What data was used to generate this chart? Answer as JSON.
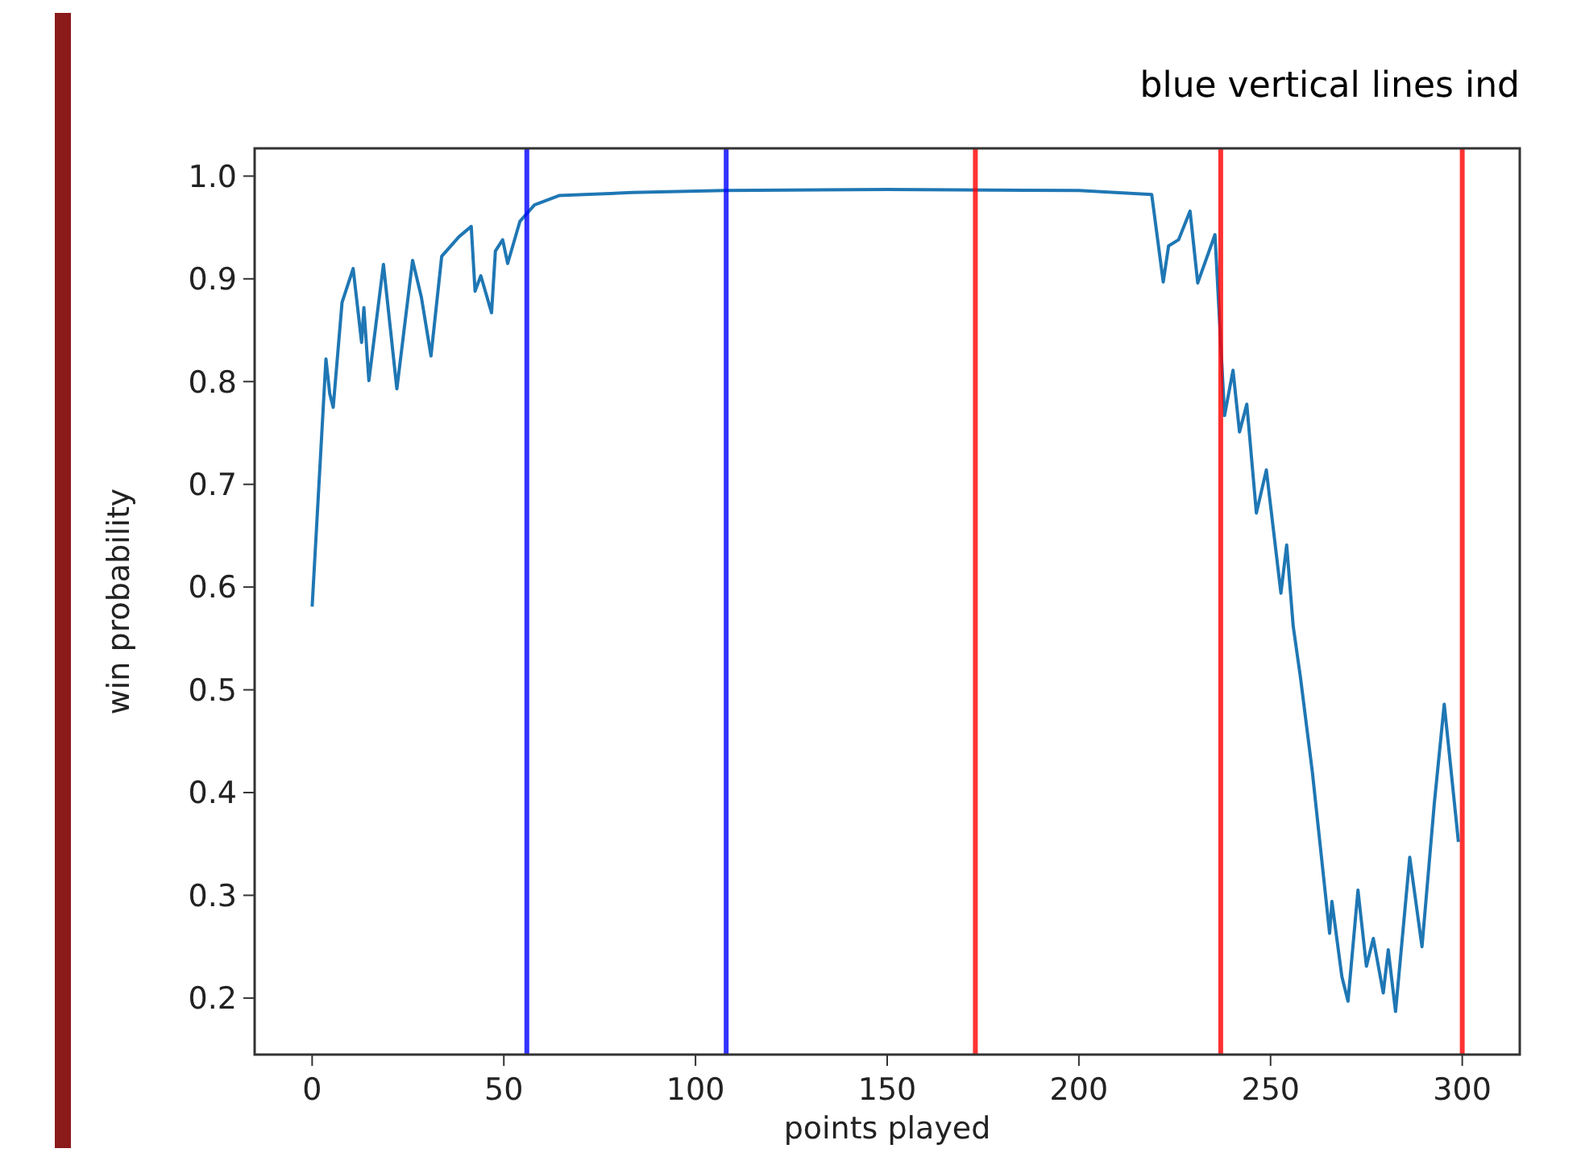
{
  "chart_data": {
    "type": "line",
    "title": "blue vertical lines ind",
    "xlabel": "points played",
    "ylabel": "win probability",
    "xlim": [
      -15,
      315
    ],
    "xticks": [
      0,
      50,
      100,
      150,
      200,
      250,
      300
    ],
    "ylim": [
      0.145,
      1.027
    ],
    "yticks": [
      {
        "value": 0.2,
        "label": "0.2"
      },
      {
        "value": 0.3,
        "label": "0.3"
      },
      {
        "value": 0.4,
        "label": "0.4"
      },
      {
        "value": 0.5,
        "label": "0.5"
      },
      {
        "value": 0.6,
        "label": "0.6"
      },
      {
        "value": 0.7,
        "label": "0.7"
      },
      {
        "value": 0.8,
        "label": "0.8"
      },
      {
        "value": 0.9,
        "label": "0.9"
      },
      {
        "value": 1.0,
        "label": "1.0"
      }
    ],
    "grid": false,
    "marker": "none",
    "line_style": "solid",
    "series": [
      {
        "color": "#1f77b4",
        "x": [
          0,
          3.6,
          4.6,
          5.5,
          7.8,
          10.7,
          12.9,
          13.5,
          14.8,
          18.6,
          22.1,
          26.2,
          28.5,
          31,
          33.8,
          38.3,
          41.5,
          42.5,
          44,
          46.8,
          47.8,
          49.7,
          51,
          54.2,
          58,
          64.4,
          83.4,
          107.6,
          150,
          200,
          219,
          222,
          223.4,
          226,
          229,
          231,
          235.5,
          238,
          240.2,
          241.9,
          243.8,
          246.3,
          248.9,
          252.7,
          254.2,
          255.9,
          257.8,
          260.9,
          265.4,
          266,
          268.6,
          270.2,
          272.8,
          275,
          276.8,
          279.4,
          280.7,
          282.6,
          286.3,
          289.5,
          292.7,
          295.3,
          299
        ],
        "values": [
          0.581,
          0.822,
          0.788,
          0.775,
          0.877,
          0.91,
          0.838,
          0.872,
          0.801,
          0.914,
          0.793,
          0.918,
          0.882,
          0.825,
          0.922,
          0.941,
          0.951,
          0.888,
          0.903,
          0.867,
          0.927,
          0.938,
          0.915,
          0.956,
          0.972,
          0.981,
          0.984,
          0.986,
          0.987,
          0.986,
          0.982,
          0.897,
          0.932,
          0.938,
          0.966,
          0.896,
          0.943,
          0.767,
          0.811,
          0.751,
          0.778,
          0.672,
          0.714,
          0.594,
          0.641,
          0.562,
          0.512,
          0.42,
          0.263,
          0.294,
          0.221,
          0.197,
          0.305,
          0.231,
          0.258,
          0.205,
          0.247,
          0.187,
          0.337,
          0.25,
          0.389,
          0.486,
          0.352
        ]
      }
    ],
    "ref_lines": [
      {
        "axis": "x",
        "value": 56,
        "color": "#0000ff"
      },
      {
        "axis": "x",
        "value": 108,
        "color": "#0000ff"
      },
      {
        "axis": "x",
        "value": 173,
        "color": "#ff0000"
      },
      {
        "axis": "x",
        "value": 237,
        "color": "#ff0000"
      },
      {
        "axis": "x",
        "value": 300,
        "color": "#ff0000"
      }
    ]
  }
}
